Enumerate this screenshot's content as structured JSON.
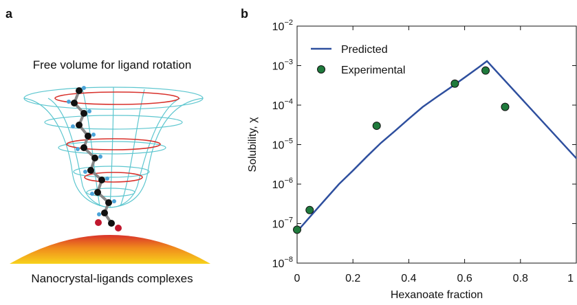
{
  "panel_a": {
    "panel_label": "a",
    "top_label": "Free volume for ligand rotation",
    "bottom_label": "Nanocrystal-ligands complexes"
  },
  "chart_data": {
    "type": "line",
    "panel_label": "b",
    "x_label": "Hexanoate fraction",
    "y_label": "Solubility, χ",
    "yscale": "log",
    "legend": "upper left",
    "xlim": [
      0,
      1
    ],
    "ylim": [
      1e-08,
      0.01
    ],
    "xticks": [
      0,
      0.2,
      0.4,
      0.6,
      0.8,
      1
    ],
    "yticks": [
      {
        "value": 1e-08,
        "label": "10−8"
      },
      {
        "value": 1e-07,
        "label": "10−7"
      },
      {
        "value": 1e-06,
        "label": "10−6"
      },
      {
        "value": 1e-05,
        "label": "10−5"
      },
      {
        "value": 0.0001,
        "label": "10−4"
      },
      {
        "value": 0.001,
        "label": "10−3"
      },
      {
        "value": 0.01,
        "label": "10−2"
      }
    ],
    "series": [
      {
        "name": "Predicted",
        "kind": "line",
        "color": "#2e4f9e",
        "x": [
          0,
          0.05,
          0.1,
          0.15,
          0.2,
          0.25,
          0.3,
          0.35,
          0.4,
          0.45,
          0.5,
          0.55,
          0.6,
          0.65,
          0.68,
          1
        ],
        "values": [
          6.3e-08,
          1.6e-07,
          4e-07,
          1e-06,
          2.2e-06,
          5e-06,
          1.1e-05,
          2.2e-05,
          4.5e-05,
          9e-05,
          0.00016,
          0.00028,
          0.0005,
          0.0009,
          0.0013,
          4.5e-06
        ]
      },
      {
        "name": "Experimental",
        "kind": "scatter",
        "color": "#1f7a3c",
        "x": [
          0,
          0.045,
          0.285,
          0.565,
          0.675,
          0.745
        ],
        "values": [
          7e-08,
          2.2e-07,
          3e-05,
          0.00035,
          0.00075,
          9e-05
        ]
      }
    ]
  }
}
